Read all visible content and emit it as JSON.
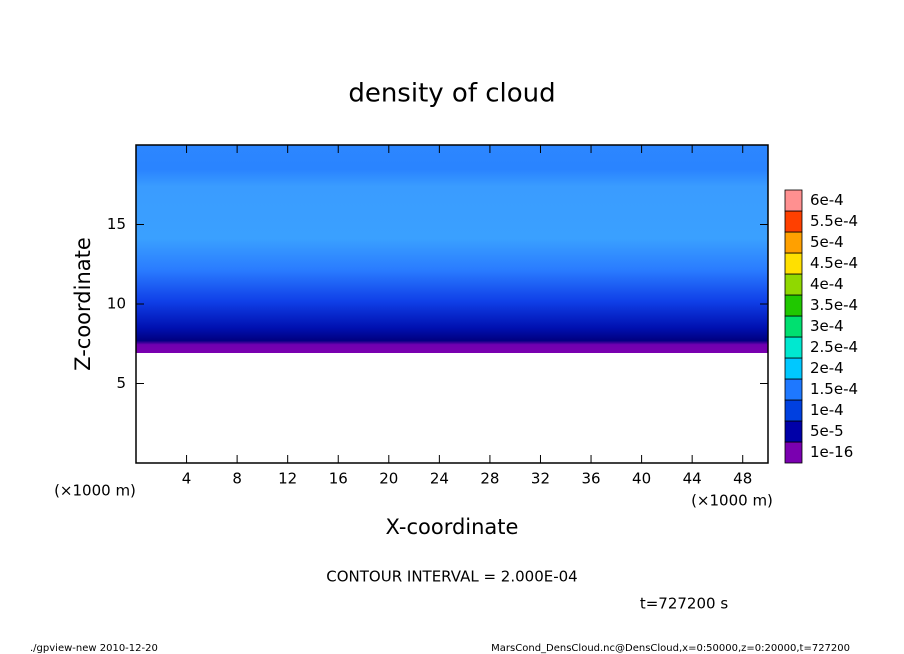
{
  "chart_data": {
    "type": "contour",
    "title": "density of cloud",
    "x_label": "X-coordinate",
    "y_label": "Z-coordinate",
    "x_unit": "(×1000 m)",
    "x_unit_right": "(×1000 m)",
    "xlim": [
      0,
      50
    ],
    "xticks": [
      4,
      8,
      12,
      16,
      20,
      24,
      28,
      32,
      36,
      40,
      44,
      48
    ],
    "ylim": [
      0,
      20
    ],
    "yticks": [
      5,
      10,
      15
    ],
    "colorbar": {
      "levels": [
        {
          "value": 1e-16,
          "label": "1e-16"
        },
        {
          "value": 5e-05,
          "label": "5e-5"
        },
        {
          "value": 0.0001,
          "label": "1e-4"
        },
        {
          "value": 0.00015,
          "label": "1.5e-4"
        },
        {
          "value": 0.0002,
          "label": "2e-4"
        },
        {
          "value": 0.00025,
          "label": "2.5e-4"
        },
        {
          "value": 0.0003,
          "label": "3e-4"
        },
        {
          "value": 0.00035,
          "label": "3.5e-4"
        },
        {
          "value": 0.0004,
          "label": "4e-4"
        },
        {
          "value": 0.00045,
          "label": "4.5e-4"
        },
        {
          "value": 0.0005,
          "label": "5e-4"
        },
        {
          "value": 0.00055,
          "label": "5.5e-4"
        },
        {
          "value": 0.0006,
          "label": "6e-4"
        }
      ],
      "colors": [
        "#7a00b0",
        "#0000a8",
        "#0040e0",
        "#1e78ff",
        "#00c8ff",
        "#00e8d0",
        "#00e070",
        "#20c800",
        "#90d800",
        "#ffe000",
        "#ffa000",
        "#ff4000",
        "#ff9090"
      ]
    },
    "contour_interval": "CONTOUR INTERVAL = 2.000E-04",
    "time": "t=727200 s"
  },
  "footer": {
    "left": "./gpview-new  2010-12-20",
    "right": "MarsCond_DensCloud.nc@DensCloud,x=0:50000,z=0:20000,t=727200"
  }
}
